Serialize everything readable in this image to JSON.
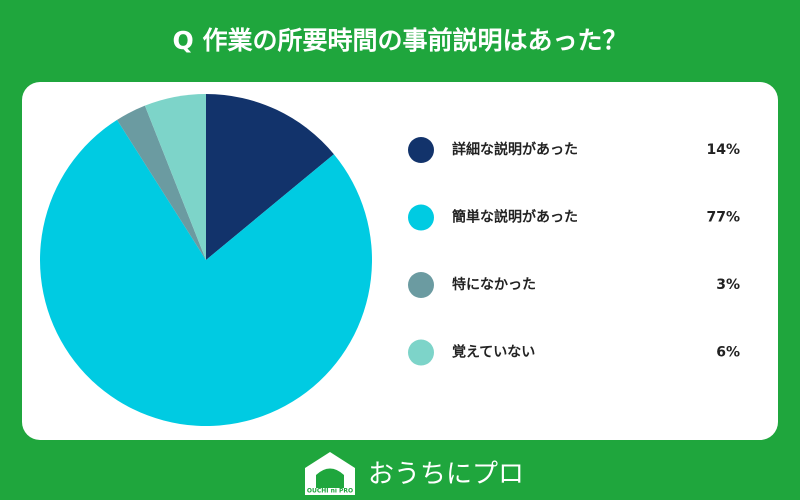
{
  "chart_data": {
    "type": "pie",
    "title": "Q 作業の所要時間の事前説明はあった？",
    "categories": [
      "詳細な説明があった",
      "簡単な説明があった",
      "特になかった",
      "覚えていない"
    ],
    "values": [
      14,
      77,
      3,
      6
    ],
    "value_labels": [
      "14%",
      "77%",
      "3%",
      "6%"
    ],
    "colors": [
      "#12336b",
      "#00cbe2",
      "#6b9ba1",
      "#7dd4c9"
    ],
    "legend": "right"
  },
  "footer": {
    "logo_text": "OUCHI ni PRO",
    "brand": "おうちにプロ"
  }
}
